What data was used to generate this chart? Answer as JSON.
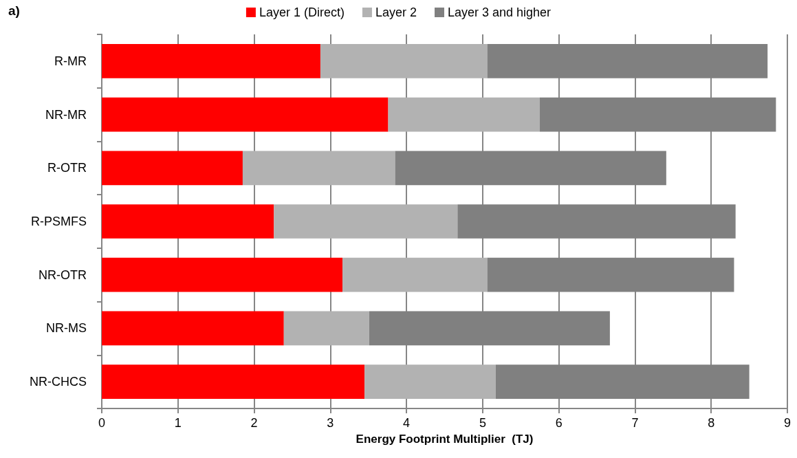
{
  "chart_data": {
    "type": "bar",
    "orientation": "horizontal",
    "stacked": true,
    "xlabel": "Energy Footprint Multiplier  (TJ)",
    "annotations": [
      "a)"
    ],
    "categories": [
      "R-MR",
      "NR-MR",
      "R-OTR",
      "R-PSMFS",
      "NR-OTR",
      "NR-MS",
      "NR-CHCS"
    ],
    "series": [
      {
        "name": "Layer 1 (Direct)",
        "color": "#ff0000",
        "values": [
          2.87,
          3.76,
          1.85,
          2.26,
          3.16,
          2.39,
          3.45
        ]
      },
      {
        "name": "Layer 2",
        "color": "#b2b2b2",
        "values": [
          2.19,
          1.99,
          2.0,
          2.41,
          1.9,
          1.12,
          1.72
        ]
      },
      {
        "name": "Layer 3 and higher",
        "color": "#808080",
        "values": [
          3.68,
          3.1,
          3.56,
          3.65,
          3.24,
          3.16,
          3.33
        ]
      }
    ],
    "xlim": [
      0,
      9
    ],
    "xticks": [
      0,
      1,
      2,
      3,
      4,
      5,
      6,
      7,
      8,
      9
    ],
    "grid": "x",
    "legend": "top"
  }
}
